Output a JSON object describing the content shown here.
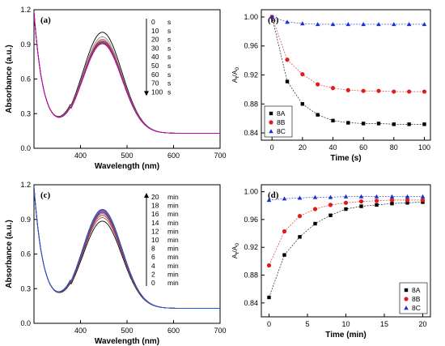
{
  "chart_data": [
    {
      "panel": "(a)",
      "type": "line",
      "xlabel": "Wavelength (nm)",
      "ylabel": "Absorbance (a.u.)",
      "xlim": [
        300,
        700
      ],
      "ylim": [
        0,
        1.2
      ],
      "xticks": [
        "400",
        "500",
        "600",
        "700"
      ],
      "yticks": [
        "0.0",
        "0.3",
        "0.6",
        "0.9",
        "1.2"
      ],
      "legend_header": "0",
      "legend_header_unit": "s",
      "legend_entries": [
        {
          "v": "10",
          "u": "s"
        },
        {
          "v": "20",
          "u": "s"
        },
        {
          "v": "30",
          "u": "s"
        },
        {
          "v": "40",
          "u": "s"
        },
        {
          "v": "50",
          "u": "s"
        },
        {
          "v": "60",
          "u": "s"
        },
        {
          "v": "70",
          "u": "s"
        },
        {
          "v": "100",
          "u": "s"
        }
      ],
      "arrow": "down",
      "peak_nm": 447,
      "peaks": [
        1.0,
        0.96,
        0.94,
        0.93,
        0.92,
        0.915,
        0.91,
        0.905,
        0.9
      ],
      "colors": [
        "#000000",
        "#888888",
        "#bb7777",
        "#c03030",
        "#1a3ea0",
        "#5a5a5a",
        "#a05050",
        "#c02020",
        "#c000c0"
      ]
    },
    {
      "panel": "(b)",
      "type": "scatter",
      "xlabel": "Time (s)",
      "ylabel_main": "A",
      "ylabel_sub1": "t",
      "ylabel_mid": "/A",
      "ylabel_sub2": "0",
      "xlim": [
        -7,
        104
      ],
      "ylim": [
        0.83,
        1.01
      ],
      "xticks": [
        0,
        20,
        40,
        60,
        80,
        100
      ],
      "yticks": [
        "0.84",
        "0.88",
        "0.92",
        "0.96",
        "1.00"
      ],
      "legend_position": "bottom-left",
      "x": [
        0,
        10,
        20,
        30,
        40,
        50,
        60,
        70,
        80,
        90,
        100
      ],
      "series": [
        {
          "name": "8A",
          "color": "#000000",
          "marker": "square",
          "values": [
            1.0,
            0.911,
            0.88,
            0.865,
            0.857,
            0.854,
            0.853,
            0.853,
            0.852,
            0.852,
            0.852
          ]
        },
        {
          "name": "8B",
          "color": "#e01b1b",
          "marker": "circle",
          "values": [
            1.0,
            0.941,
            0.921,
            0.907,
            0.902,
            0.899,
            0.898,
            0.898,
            0.897,
            0.897,
            0.897
          ]
        },
        {
          "name": "8C",
          "color": "#1a2fd0",
          "marker": "triangle",
          "values": [
            1.0,
            0.993,
            0.991,
            0.99,
            0.99,
            0.99,
            0.99,
            0.99,
            0.99,
            0.99,
            0.99
          ]
        }
      ]
    },
    {
      "panel": "(c)",
      "type": "line",
      "xlabel": "Wavelength (nm)",
      "ylabel": "Absorbance (a.u.)",
      "xlim": [
        300,
        700
      ],
      "ylim": [
        0,
        1.2
      ],
      "xticks": [
        "400",
        "500",
        "600",
        "700"
      ],
      "yticks": [
        "0.0",
        "0.3",
        "0.6",
        "0.9",
        "1.2"
      ],
      "legend_header": "20",
      "legend_header_unit": "min",
      "legend_entries": [
        {
          "v": "18",
          "u": "min"
        },
        {
          "v": "16",
          "u": "min"
        },
        {
          "v": "14",
          "u": "min"
        },
        {
          "v": "12",
          "u": "min"
        },
        {
          "v": "10",
          "u": "min"
        },
        {
          "v": "8",
          "u": "min"
        },
        {
          "v": "6",
          "u": "min"
        },
        {
          "v": "4",
          "u": "min"
        },
        {
          "v": "2",
          "u": "min"
        },
        {
          "v": "0",
          "u": "min"
        }
      ],
      "arrow": "up",
      "peak_nm": 447,
      "peaks": [
        0.88,
        0.91,
        0.93,
        0.945,
        0.955,
        0.962,
        0.968,
        0.972,
        0.976,
        0.979,
        0.982
      ],
      "colors": [
        "#000000",
        "#a05050",
        "#c02020",
        "#5a5a5a",
        "#1a3ea0",
        "#c000c0",
        "#bb7777",
        "#c03030",
        "#888888",
        "#3a3aa0",
        "#1a5ad0"
      ]
    },
    {
      "panel": "(d)",
      "type": "scatter",
      "xlabel": "Time (min)",
      "ylabel_main": "A",
      "ylabel_sub1": "t",
      "ylabel_mid": "/A",
      "ylabel_sub2": "0",
      "xlim": [
        -1,
        21
      ],
      "ylim": [
        0.82,
        1.01
      ],
      "xticks": [
        0,
        5,
        10,
        15,
        20
      ],
      "yticks": [
        "0.84",
        "0.88",
        "0.92",
        "0.96",
        "1.00"
      ],
      "legend_position": "bottom-right",
      "x": [
        0,
        2,
        4,
        6,
        8,
        10,
        12,
        14,
        16,
        18,
        20
      ],
      "series": [
        {
          "name": "8A",
          "color": "#000000",
          "marker": "square",
          "values": [
            0.848,
            0.909,
            0.935,
            0.954,
            0.966,
            0.975,
            0.979,
            0.981,
            0.983,
            0.984,
            0.985
          ]
        },
        {
          "name": "8B",
          "color": "#e01b1b",
          "marker": "circle",
          "values": [
            0.894,
            0.943,
            0.965,
            0.975,
            0.981,
            0.984,
            0.986,
            0.987,
            0.988,
            0.988,
            0.988
          ]
        },
        {
          "name": "8C",
          "color": "#1a2fd0",
          "marker": "triangle",
          "values": [
            0.988,
            0.99,
            0.991,
            0.992,
            0.992,
            0.993,
            0.993,
            0.993,
            0.993,
            0.993,
            0.993
          ]
        }
      ]
    }
  ]
}
